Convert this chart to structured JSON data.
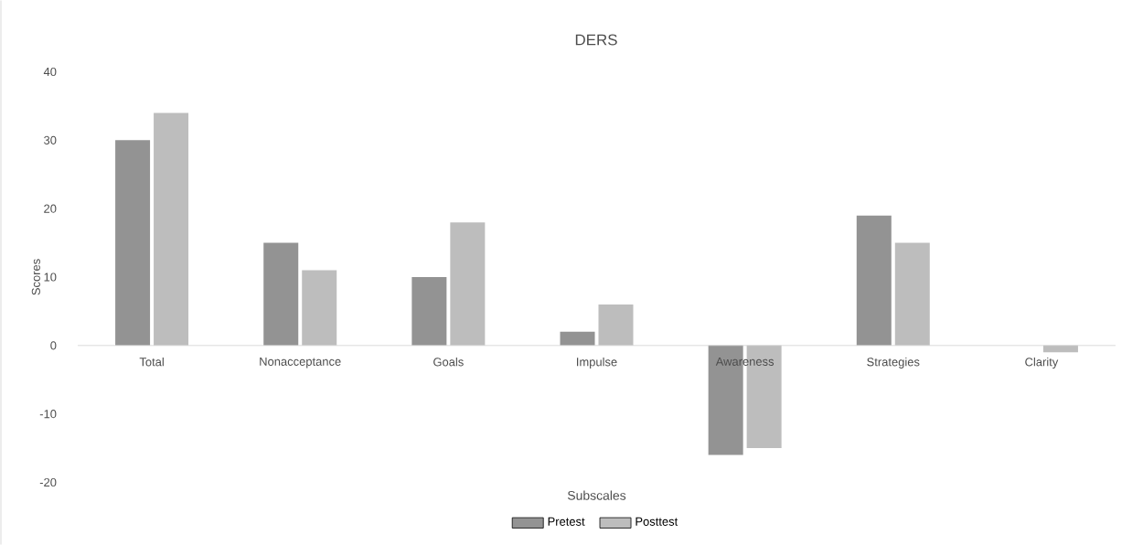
{
  "chart_data": {
    "type": "bar",
    "title": "DERS",
    "xlabel": "Subscales",
    "ylabel": "Scores",
    "categories": [
      "Total",
      "Nonacceptance",
      "Goals",
      "Impulse",
      "Awareness",
      "Strategies",
      "Clarity"
    ],
    "series": [
      {
        "name": "Pretest",
        "color": "#939393",
        "values": [
          30,
          15,
          10,
          2,
          -16,
          19,
          0
        ]
      },
      {
        "name": "Posttest",
        "color": "#bdbdbd",
        "values": [
          34,
          11,
          18,
          6,
          -15,
          15,
          -1
        ]
      }
    ],
    "ylim": [
      -20,
      40
    ],
    "yticks": [
      -20,
      -10,
      0,
      10,
      20,
      30,
      40
    ],
    "legend": "bottom"
  }
}
